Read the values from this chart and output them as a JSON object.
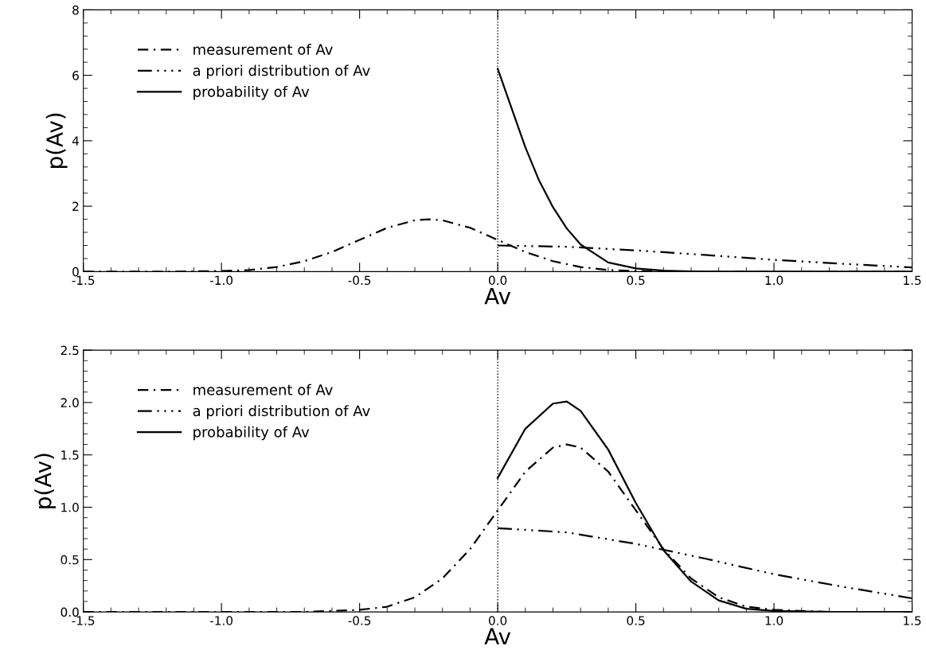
{
  "chart_data": [
    {
      "type": "line",
      "xlabel": "Av",
      "ylabel": "p(Av)",
      "legend": "top left",
      "xlim": [
        -1.5,
        1.5
      ],
      "ylim": [
        0,
        8
      ],
      "xticks": [
        {
          "value": -1.5,
          "label": "-1.5"
        },
        {
          "value": -1.0,
          "label": "-1.0"
        },
        {
          "value": -0.5,
          "label": "-0.5"
        },
        {
          "value": 0.0,
          "label": "0.0"
        },
        {
          "value": 0.5,
          "label": "0.5"
        },
        {
          "value": 1.0,
          "label": "1.0"
        },
        {
          "value": 1.5,
          "label": "1.5"
        }
      ],
      "yticks": [
        0,
        2,
        4,
        6,
        8
      ],
      "ref_lines": [
        {
          "axis": "x",
          "value": 0,
          "line_style": "dotted",
          "color": "#000000"
        }
      ],
      "series": [
        {
          "name": "measurement of Av",
          "color": "#000000",
          "line_style": "dashdot",
          "x": [
            -1.5,
            -1.2,
            -1.0,
            -0.9,
            -0.8,
            -0.7,
            -0.6,
            -0.5,
            -0.4,
            -0.3,
            -0.25,
            -0.2,
            -0.1,
            0.0,
            0.1,
            0.2,
            0.3,
            0.4,
            0.5,
            0.7,
            1.0,
            1.5
          ],
          "values": [
            0,
            0,
            0.02,
            0.05,
            0.14,
            0.32,
            0.6,
            0.97,
            1.34,
            1.57,
            1.6,
            1.57,
            1.34,
            0.97,
            0.6,
            0.32,
            0.14,
            0.05,
            0.02,
            0,
            0,
            0
          ]
        },
        {
          "name": "a priori distribution of Av",
          "color": "#000000",
          "line_style": "dashdotdot",
          "x": [
            0.0,
            0.25,
            0.5,
            0.75,
            1.0,
            1.25,
            1.5
          ],
          "values": [
            0.8,
            0.76,
            0.65,
            0.51,
            0.36,
            0.24,
            0.13
          ]
        },
        {
          "name": "probability of Av",
          "color": "#000000",
          "line_style": "solid",
          "x": [
            0.0,
            0.05,
            0.1,
            0.15,
            0.2,
            0.25,
            0.3,
            0.4,
            0.5,
            0.6,
            0.7,
            0.8,
            1.0,
            1.5
          ],
          "values": [
            6.2,
            5.0,
            3.8,
            2.78,
            1.97,
            1.32,
            0.83,
            0.28,
            0.1,
            0.03,
            0.01,
            0,
            0,
            0
          ]
        }
      ]
    },
    {
      "type": "line",
      "xlabel": "Av",
      "ylabel": "p(Av)",
      "legend": "top left",
      "xlim": [
        -1.5,
        1.5
      ],
      "ylim": [
        0,
        2.5
      ],
      "xticks": [
        {
          "value": -1.5,
          "label": "-1.5"
        },
        {
          "value": -1.0,
          "label": "-1.0"
        },
        {
          "value": -0.5,
          "label": "-0.5"
        },
        {
          "value": 0.0,
          "label": "0.0"
        },
        {
          "value": 0.5,
          "label": "0.5"
        },
        {
          "value": 1.0,
          "label": "1.0"
        },
        {
          "value": 1.5,
          "label": "1.5"
        }
      ],
      "yticks": [
        {
          "value": 0,
          "label": "0.0"
        },
        {
          "value": 0.5,
          "label": "0.5"
        },
        {
          "value": 1.0,
          "label": "1.0"
        },
        {
          "value": 1.5,
          "label": "1.5"
        },
        {
          "value": 2.0,
          "label": "2.0"
        },
        {
          "value": 2.5,
          "label": "2.5"
        }
      ],
      "ref_lines": [
        {
          "axis": "x",
          "value": 0,
          "line_style": "dotted",
          "color": "#000000"
        }
      ],
      "series": [
        {
          "name": "measurement of Av",
          "color": "#000000",
          "line_style": "dashdot",
          "x": [
            -1.5,
            -0.7,
            -0.5,
            -0.4,
            -0.3,
            -0.2,
            -0.1,
            0.0,
            0.1,
            0.2,
            0.25,
            0.3,
            0.4,
            0.5,
            0.6,
            0.7,
            0.8,
            0.9,
            1.0,
            1.2,
            1.5
          ],
          "values": [
            0,
            0,
            0.02,
            0.05,
            0.14,
            0.32,
            0.6,
            0.97,
            1.34,
            1.57,
            1.6,
            1.57,
            1.34,
            0.97,
            0.6,
            0.32,
            0.14,
            0.05,
            0.02,
            0,
            0
          ]
        },
        {
          "name": "a priori distribution of Av",
          "color": "#000000",
          "line_style": "dashdotdot",
          "x": [
            0.0,
            0.25,
            0.5,
            0.75,
            1.0,
            1.25,
            1.5
          ],
          "values": [
            0.8,
            0.76,
            0.65,
            0.51,
            0.36,
            0.24,
            0.13
          ]
        },
        {
          "name": "probability of Av",
          "color": "#000000",
          "line_style": "solid",
          "x": [
            0.0,
            0.1,
            0.2,
            0.25,
            0.3,
            0.4,
            0.5,
            0.6,
            0.7,
            0.8,
            0.9,
            1.0,
            1.2,
            1.5
          ],
          "values": [
            1.28,
            1.75,
            1.99,
            2.01,
            1.92,
            1.55,
            1.04,
            0.59,
            0.29,
            0.11,
            0.03,
            0.01,
            0,
            0
          ]
        }
      ]
    }
  ]
}
